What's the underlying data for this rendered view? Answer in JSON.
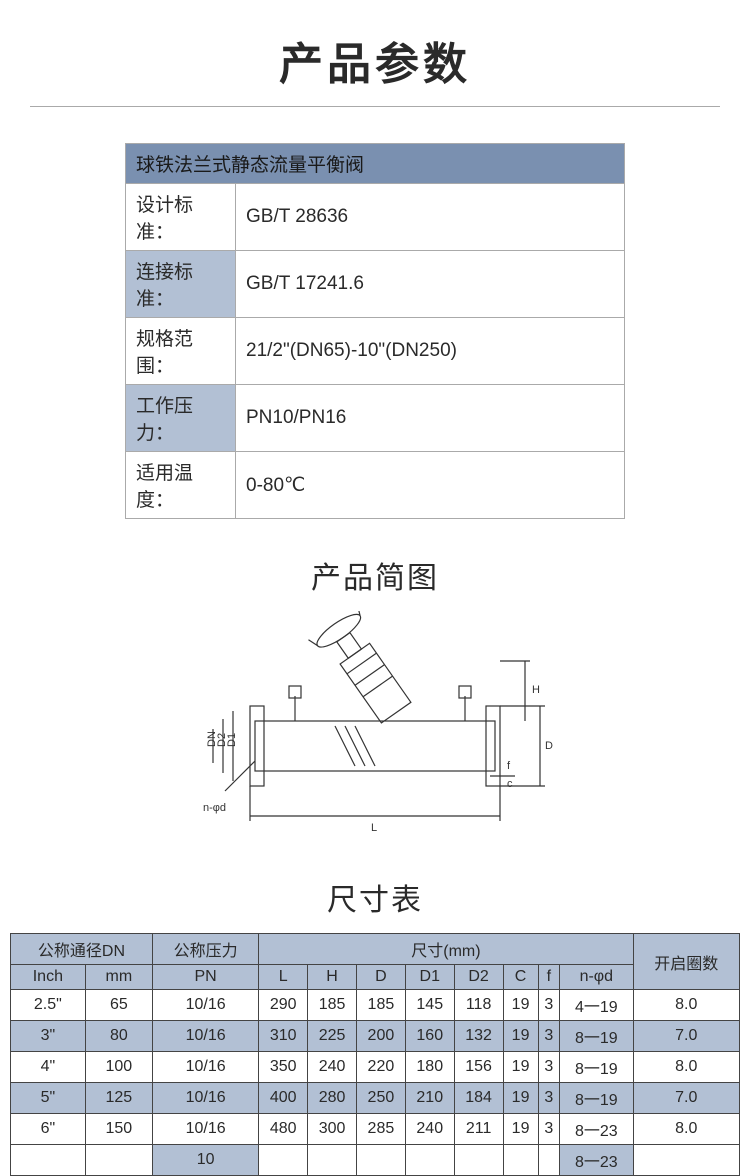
{
  "title": "产品参数",
  "spec": {
    "header": "球铁法兰式静态流量平衡阀",
    "rows": [
      {
        "label": "设计标准：",
        "value": "GB/T 28636"
      },
      {
        "label": "连接标准：",
        "value": "GB/T 17241.6"
      },
      {
        "label": "规格范围：",
        "value": "21/2\"(DN65)-10\"(DN250)"
      },
      {
        "label": "工作压力：",
        "value": "PN10/PN16"
      },
      {
        "label": "适用温度：",
        "value": "0-80℃"
      }
    ]
  },
  "diagram_title": "产品简图",
  "diagram_labels": {
    "H": "H",
    "D": "D",
    "D1": "D1",
    "D2": "D2",
    "DN": "DN",
    "f": "f",
    "c": "c",
    "n_phi_d": "n-φd",
    "L": "L"
  },
  "dim_title": "尺寸表",
  "dim_table": {
    "headers": {
      "dn_group": "公称通径DN",
      "inch": "Inch",
      "mm": "mm",
      "pn_group": "公称压力",
      "pn": "PN",
      "size_group": "尺寸(mm)",
      "L": "L",
      "H": "H",
      "D": "D",
      "D1": "D1",
      "D2": "D2",
      "C": "C",
      "f": "f",
      "nphid": "n-φd",
      "open_turns": "开启圈数"
    },
    "rows": [
      {
        "inch": "2.5\"",
        "mm": "65",
        "pn": "10/16",
        "L": "290",
        "H": "185",
        "D": "185",
        "D1": "145",
        "D2": "118",
        "C": "19",
        "f": "3",
        "nphid": "4一19",
        "turns": "8.0"
      },
      {
        "inch": "3\"",
        "mm": "80",
        "pn": "10/16",
        "L": "310",
        "H": "225",
        "D": "200",
        "D1": "160",
        "D2": "132",
        "C": "19",
        "f": "3",
        "nphid": "8一19",
        "turns": "7.0"
      },
      {
        "inch": "4\"",
        "mm": "100",
        "pn": "10/16",
        "L": "350",
        "H": "240",
        "D": "220",
        "D1": "180",
        "D2": "156",
        "C": "19",
        "f": "3",
        "nphid": "8一19",
        "turns": "8.0"
      },
      {
        "inch": "5\"",
        "mm": "125",
        "pn": "10/16",
        "L": "400",
        "H": "280",
        "D": "250",
        "D1": "210",
        "D2": "184",
        "C": "19",
        "f": "3",
        "nphid": "8一19",
        "turns": "7.0"
      },
      {
        "inch": "6\"",
        "mm": "150",
        "pn": "10/16",
        "L": "480",
        "H": "300",
        "D": "285",
        "D1": "240",
        "D2": "211",
        "C": "19",
        "f": "3",
        "nphid": "8一23",
        "turns": "8.0"
      }
    ],
    "partial": {
      "pn": "10",
      "nphid": "8一23"
    }
  },
  "colors": {
    "spec_header_bg": "#7a90b0",
    "spec_shade_bg": "#b2c0d4",
    "table_header_bg": "#b2c0d4",
    "border": "#444444",
    "text": "#2a2a2a"
  }
}
